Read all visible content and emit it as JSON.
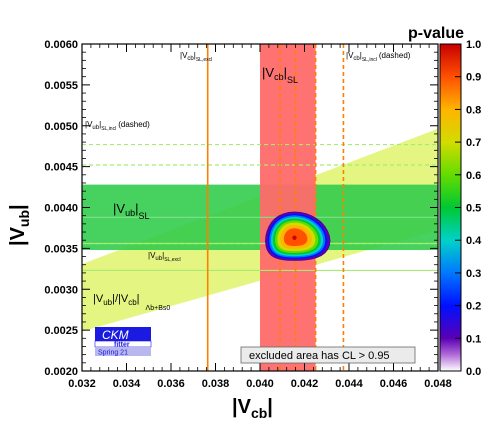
{
  "chart_data": {
    "type": "heatmap",
    "title": "",
    "xlabel": "|V",
    "xlabel_sub": "cb",
    "ylabel": "|V",
    "ylabel_sub": "ub",
    "xlim": [
      0.032,
      0.048
    ],
    "ylim": [
      0.002,
      0.006
    ],
    "x_ticks": [
      "0.032",
      "0.034",
      "0.036",
      "0.038",
      "0.040",
      "0.042",
      "0.044",
      "0.046",
      "0.048"
    ],
    "y_ticks": [
      "0.0020",
      "0.0025",
      "0.0030",
      "0.0035",
      "0.0040",
      "0.0045",
      "0.0050",
      "0.0055",
      "0.0060"
    ],
    "grid": false,
    "colorbar": {
      "title": "p-value",
      "ticks": [
        "0.0",
        "0.1",
        "0.2",
        "0.3",
        "0.4",
        "0.5",
        "0.6",
        "0.7",
        "0.8",
        "0.9",
        "1.0"
      ],
      "range": [
        0.0,
        1.0
      ],
      "colors": [
        "#ffffff",
        "#5a00b4",
        "#0010ff",
        "#0078ff",
        "#00d2c8",
        "#00c832",
        "#64dc00",
        "#d2dc00",
        "#ffb400",
        "#ff5000",
        "#c80000"
      ]
    },
    "constraints": [
      {
        "label": "|Vcb|SL",
        "kind": "vertical_band",
        "x_range": [
          0.04,
          0.0425
        ],
        "color": "#ff6a6a"
      },
      {
        "label": "|Vcb|SL,excl",
        "kind": "vertical_lines",
        "x": [
          0.03765
        ],
        "style": "solid",
        "color": "#ff7f00"
      },
      {
        "label": "|Vcb|SL,excl",
        "kind": "vertical_lines",
        "x": [
          0.0409,
          0.0416,
          0.0425
        ],
        "style": "dashed",
        "color": "#ff7f00"
      },
      {
        "label": "|Vcb|SL,incl (dashed)",
        "kind": "vertical_lines",
        "x": [
          0.04375
        ],
        "style": "dashed",
        "color": "#ff7f00"
      },
      {
        "label": "|Vub|SL",
        "kind": "horizontal_band",
        "y_range": [
          0.00348,
          0.00428
        ],
        "color": "#33cc4d"
      },
      {
        "label": "|Vub|SL",
        "kind": "horizontal_lines",
        "y": [
          0.00388
        ],
        "style": "solid",
        "color": "#7ee08a"
      },
      {
        "label": "|Vub|SL,excl",
        "kind": "horizontal_lines",
        "y": [
          0.00356,
          0.00323
        ],
        "style": "solid",
        "color": "#a6ec72"
      },
      {
        "label": "|Vub|SL,incl (dashed)",
        "kind": "horizontal_lines",
        "y": [
          0.00477,
          0.00452,
          0.00356
        ],
        "style": "dashed",
        "color": "#a6ec72"
      },
      {
        "label": "|Vub|/|Vcb|Λb+Bs0",
        "kind": "ratio_band",
        "slope_range": [
          0.0775,
          0.1035
        ],
        "color": "#e3f57a"
      }
    ],
    "fit": {
      "best_x": 0.04155,
      "best_y": 0.00363,
      "contour_levels": [
        0.05,
        0.1,
        0.2,
        0.3,
        0.4,
        0.5,
        0.6,
        0.7,
        0.8,
        0.9
      ]
    },
    "annotations": {
      "vcb_sl_excl": {
        "main": "|V",
        "sub": "cb",
        "suffix": "SL,excl"
      },
      "vcb_sl": {
        "main": "|V",
        "sub": "cb",
        "suffix": "SL"
      },
      "vcb_sl_incl": {
        "main": "|V",
        "sub": "cb",
        "suffix": "SL,incl",
        "note": "(dashed)"
      },
      "vub_sl_incl": {
        "main": "|V",
        "sub": "ub",
        "suffix": "SL,incl",
        "note": "(dashed)"
      },
      "vub_sl": {
        "main": "|V",
        "sub": "ub",
        "suffix": "SL"
      },
      "vub_sl_excl": {
        "main": "|V",
        "sub": "ub",
        "suffix": "SL,excl"
      },
      "ratio": {
        "a": "|V",
        "a_sub": "ub",
        "mid": "|/|V",
        "b_sub": "cb",
        "end": "|",
        "suffix": "Λb+Bs0"
      },
      "excluded_note": "excluded area has CL > 0.95"
    },
    "logo": {
      "line1": "CKM",
      "line2": "fitter",
      "line3": "Spring 21"
    }
  }
}
